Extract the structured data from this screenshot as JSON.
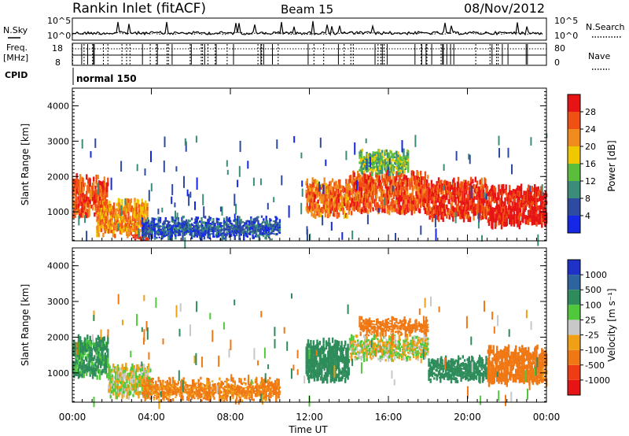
{
  "header": {
    "station": "Rankin Inlet (fitACF)",
    "beam": "Beam 15",
    "date": "08/Nov/2012"
  },
  "noise_panel": {
    "left_label": "N.Sky",
    "right_label": "N.Search",
    "left_ticks": [
      "10^5",
      "10^0"
    ],
    "right_ticks": [
      "10^5",
      "10^0"
    ]
  },
  "freq_panel": {
    "left_label_line1": "Freq.",
    "left_label_line2": "[MHz]",
    "left_ticks": [
      "18",
      "8"
    ],
    "right_label": "Nave",
    "right_ticks": [
      "80",
      "0"
    ]
  },
  "cpid": {
    "label": "CPID",
    "value": "normal 150"
  },
  "x_axis": {
    "label": "Time UT",
    "ticks": [
      "00:00",
      "04:00",
      "08:00",
      "12:00",
      "16:00",
      "20:00",
      "00:00"
    ],
    "range_hours": [
      0,
      24
    ]
  },
  "y_axis": {
    "label": "Slant Range [km]",
    "ticks": [
      "1000",
      "2000",
      "3000",
      "4000"
    ],
    "range_km": [
      180,
      4500
    ]
  },
  "power_colorbar": {
    "label": "Power [dB]",
    "ticks": [
      "4",
      "8",
      "12",
      "16",
      "20",
      "24",
      "28"
    ],
    "colors": [
      "#1428e6",
      "#2d4ba0",
      "#3c8c7a",
      "#5abe3c",
      "#f0c800",
      "#f08c1e",
      "#f05014",
      "#e61414"
    ]
  },
  "velocity_colorbar": {
    "label": "Velocity [m s⁻¹]",
    "ticks": [
      "1000",
      "500",
      "100",
      "25",
      "-25",
      "-100",
      "-500",
      "-1000"
    ],
    "colors": [
      "#1e32c8",
      "#2d64a0",
      "#2d8c5a",
      "#50c83c",
      "#c8c8c8",
      "#f0a014",
      "#f07814",
      "#f03c14",
      "#e61414"
    ]
  },
  "chart_data": [
    {
      "type": "heatmap",
      "title": "Power",
      "xlabel": "Time UT",
      "ylabel": "Slant Range [km]",
      "xlim": [
        0,
        24
      ],
      "ylim": [
        180,
        4500
      ],
      "regions": [
        {
          "t": [
            0.0,
            1.8
          ],
          "r": [
            800,
            2100
          ],
          "level": 26
        },
        {
          "t": [
            1.2,
            3.8
          ],
          "r": [
            250,
            1400
          ],
          "level": 22
        },
        {
          "t": [
            3.0,
            4.0
          ],
          "r": [
            180,
            500
          ],
          "level": 28
        },
        {
          "t": [
            3.5,
            10.5
          ],
          "r": [
            180,
            900
          ],
          "level": 6
        },
        {
          "t": [
            11.8,
            14.0
          ],
          "r": [
            800,
            2000
          ],
          "level": 24
        },
        {
          "t": [
            14.0,
            18.0
          ],
          "r": [
            900,
            2200
          ],
          "level": 26
        },
        {
          "t": [
            18.0,
            21.0
          ],
          "r": [
            700,
            2000
          ],
          "level": 28
        },
        {
          "t": [
            21.0,
            24.0
          ],
          "r": [
            500,
            1800
          ],
          "level": 30
        },
        {
          "t": [
            14.5,
            17.0
          ],
          "r": [
            2000,
            2800
          ],
          "level": 14
        }
      ]
    },
    {
      "type": "heatmap",
      "title": "Velocity",
      "xlabel": "Time UT",
      "ylabel": "Slant Range [km]",
      "xlim": [
        0,
        24
      ],
      "ylim": [
        180,
        4500
      ],
      "regions": [
        {
          "t": [
            0.0,
            1.8
          ],
          "r": [
            800,
            2100
          ],
          "v": 150
        },
        {
          "t": [
            1.8,
            4.0
          ],
          "r": [
            250,
            1300
          ],
          "v": 0
        },
        {
          "t": [
            3.5,
            10.5
          ],
          "r": [
            180,
            900
          ],
          "v": -150
        },
        {
          "t": [
            11.8,
            14.0
          ],
          "r": [
            700,
            2000
          ],
          "v": 300
        },
        {
          "t": [
            14.0,
            18.0
          ],
          "r": [
            1300,
            2100
          ],
          "v": 0
        },
        {
          "t": [
            14.5,
            18.0
          ],
          "r": [
            2000,
            2600
          ],
          "v": -300
        },
        {
          "t": [
            18.0,
            21.0
          ],
          "r": [
            700,
            1500
          ],
          "v": 200
        },
        {
          "t": [
            21.0,
            24.0
          ],
          "r": [
            600,
            1800
          ],
          "v": -400
        }
      ]
    }
  ]
}
